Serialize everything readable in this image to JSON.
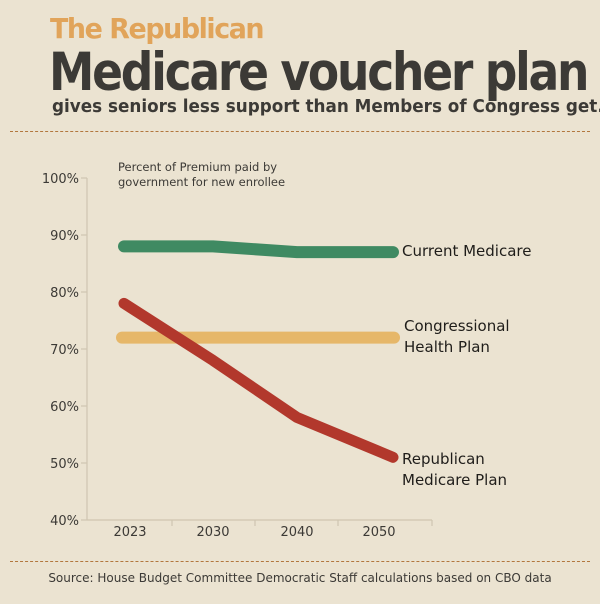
{
  "header": {
    "kicker": "The Republican",
    "headline": "Medicare voucher plan",
    "subhead": "gives seniors less support than Members of Congress get."
  },
  "footer": {
    "source": "Source: House Budget Committee Democratic Staff calculations based on CBO data"
  },
  "colors": {
    "background": "#ebe3d1",
    "accent": "#e1a45a",
    "current_medicare": "#3f8a62",
    "congressional": "#e6b769",
    "republican": "#b2382c"
  },
  "chart_data": {
    "type": "line",
    "categories": [
      "2023",
      "2030",
      "2040",
      "2050"
    ],
    "series": [
      {
        "name": [
          "Current Medicare"
        ],
        "values": [
          88,
          88,
          87,
          87
        ],
        "color": "#3f8a62"
      },
      {
        "name": [
          "Congressional",
          "Health Plan"
        ],
        "values": [
          72,
          72,
          72,
          72
        ],
        "color": "#e6b769"
      },
      {
        "name": [
          "Republican",
          "Medicare Plan"
        ],
        "values": [
          78,
          68,
          58,
          51
        ],
        "color": "#b2382c"
      }
    ],
    "ylabel": [
      "Percent of Premium paid by",
      "government for new enrollee"
    ],
    "ylim": [
      40,
      100
    ],
    "yticks": [
      40,
      50,
      60,
      70,
      80,
      90,
      100
    ],
    "ytick_labels": [
      "40%",
      "50%",
      "60%",
      "70%",
      "80%",
      "90%",
      "100%"
    ],
    "legend": "direct labels at right",
    "grid": false
  }
}
